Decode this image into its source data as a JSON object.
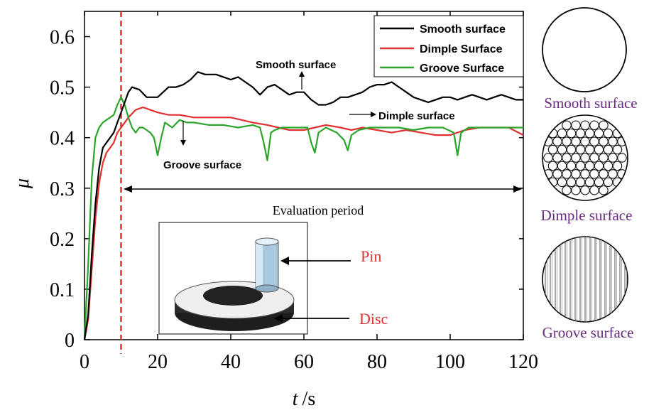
{
  "chart_data": {
    "type": "line",
    "xlabel_italic": "t",
    "xlabel_unit": "/s",
    "ylabel": "μ",
    "xlim": [
      0,
      120
    ],
    "ylim": [
      0,
      0.65
    ],
    "xticks": [
      "0",
      "20",
      "40",
      "60",
      "80",
      "100",
      "120"
    ],
    "yticks": [
      "0",
      "0.1",
      "0.2",
      "0.3",
      "0.4",
      "0.5",
      "0.6"
    ],
    "xtick_values": [
      0,
      20,
      40,
      60,
      80,
      100,
      120
    ],
    "ytick_values": [
      0,
      0.1,
      0.2,
      0.3,
      0.4,
      0.5,
      0.6
    ],
    "grid": false,
    "legend_position": "top-right",
    "series": [
      {
        "name": "Smooth surface",
        "color": "#000000",
        "x": [
          0,
          1,
          2,
          3,
          4,
          5,
          6,
          7,
          8,
          9,
          10,
          11,
          12,
          13,
          15,
          17,
          20,
          23,
          25,
          27,
          29,
          31,
          33,
          36,
          38,
          40,
          42,
          44,
          46,
          48,
          50,
          52,
          54,
          56,
          58,
          60,
          62,
          64,
          66,
          68,
          70,
          72,
          74,
          76,
          78,
          80,
          82,
          84,
          86,
          88,
          90,
          92,
          94,
          96,
          98,
          100,
          102,
          104,
          106,
          108,
          110,
          112,
          114,
          116,
          118,
          120
        ],
        "y": [
          0.0,
          0.05,
          0.17,
          0.27,
          0.34,
          0.38,
          0.39,
          0.4,
          0.41,
          0.43,
          0.45,
          0.47,
          0.49,
          0.5,
          0.495,
          0.48,
          0.48,
          0.5,
          0.5,
          0.505,
          0.515,
          0.53,
          0.525,
          0.525,
          0.52,
          0.515,
          0.52,
          0.51,
          0.5,
          0.485,
          0.5,
          0.505,
          0.495,
          0.485,
          0.49,
          0.49,
          0.475,
          0.465,
          0.465,
          0.47,
          0.48,
          0.48,
          0.485,
          0.49,
          0.5,
          0.505,
          0.505,
          0.51,
          0.5,
          0.49,
          0.48,
          0.475,
          0.47,
          0.475,
          0.48,
          0.48,
          0.475,
          0.48,
          0.485,
          0.48,
          0.475,
          0.48,
          0.485,
          0.48,
          0.475,
          0.475
        ]
      },
      {
        "name": "Dimple Surface",
        "color": "#e03030",
        "x": [
          0,
          1,
          2,
          3,
          4,
          5,
          6,
          7,
          8,
          9,
          10,
          11,
          12,
          14,
          16,
          18,
          20,
          23,
          26,
          30,
          35,
          40,
          43,
          46,
          50,
          53,
          56,
          60,
          63,
          66,
          70,
          73,
          76,
          80,
          84,
          88,
          92,
          96,
          100,
          104,
          108,
          112,
          116,
          120
        ],
        "y": [
          0.0,
          0.04,
          0.14,
          0.24,
          0.31,
          0.35,
          0.37,
          0.38,
          0.39,
          0.41,
          0.42,
          0.43,
          0.44,
          0.455,
          0.46,
          0.455,
          0.45,
          0.445,
          0.445,
          0.44,
          0.44,
          0.44,
          0.435,
          0.43,
          0.425,
          0.42,
          0.415,
          0.415,
          0.42,
          0.425,
          0.42,
          0.415,
          0.42,
          0.415,
          0.41,
          0.415,
          0.41,
          0.405,
          0.405,
          0.415,
          0.42,
          0.42,
          0.42,
          0.405
        ]
      },
      {
        "name": "Groove Surface",
        "color": "#2aa52a",
        "x": [
          0,
          1,
          2,
          3,
          4,
          5,
          6,
          7,
          8,
          9,
          10,
          11,
          12,
          13,
          14,
          15,
          16,
          18,
          19,
          20,
          21,
          22,
          24,
          26,
          28,
          30,
          34,
          38,
          42,
          46,
          48,
          49,
          50,
          51,
          52,
          54,
          58,
          61,
          62,
          63,
          64,
          66,
          69,
          71,
          72,
          73,
          75,
          78,
          82,
          86,
          90,
          94,
          98,
          101,
          102,
          103,
          105,
          109,
          113,
          117,
          120
        ],
        "y": [
          0.0,
          0.15,
          0.32,
          0.4,
          0.42,
          0.43,
          0.435,
          0.44,
          0.445,
          0.465,
          0.48,
          0.465,
          0.44,
          0.42,
          0.41,
          0.42,
          0.42,
          0.41,
          0.4,
          0.365,
          0.4,
          0.43,
          0.42,
          0.435,
          0.43,
          0.43,
          0.425,
          0.425,
          0.42,
          0.425,
          0.42,
          0.39,
          0.355,
          0.41,
          0.415,
          0.42,
          0.42,
          0.42,
          0.39,
          0.37,
          0.41,
          0.42,
          0.41,
          0.395,
          0.375,
          0.405,
          0.415,
          0.42,
          0.42,
          0.42,
          0.415,
          0.42,
          0.42,
          0.41,
          0.365,
          0.41,
          0.42,
          0.42,
          0.42,
          0.42,
          0.42
        ]
      }
    ],
    "legend": [
      "Smooth surface",
      "Dimple Surface",
      "Groove Surface"
    ],
    "vline": {
      "x": 10,
      "color": "#e03030",
      "style": "dashed"
    },
    "annotations": {
      "smooth": "Smooth surface",
      "dimple": "Dimple surface",
      "groove": "Groove surface",
      "evaluation": "Evaluation period",
      "pin": "Pin",
      "disc": "Disc"
    },
    "surface_labels": [
      "Smooth surface",
      "Dimple surface",
      "Groove surface"
    ]
  },
  "colors": {
    "axis": "#000000",
    "label_red": "#e03030",
    "label_purple": "#6a2a82",
    "pin_blue": "#a9c9df",
    "disc_dark": "#2b2b2b"
  }
}
